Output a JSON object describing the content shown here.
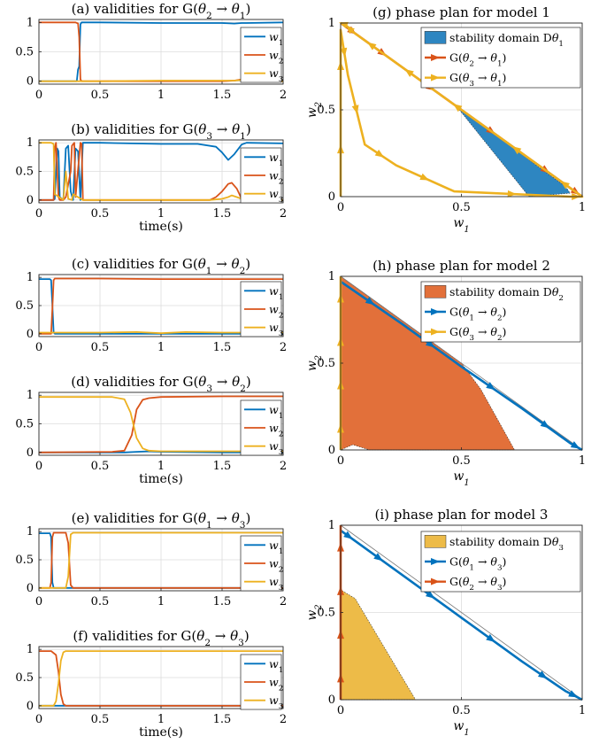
{
  "chart_data": [
    {
      "id": "a",
      "type": "line",
      "title": "(a) validities for G(θ2 → θ1)",
      "xlabel": "",
      "ylabel": "",
      "xlim": [
        0,
        2
      ],
      "ylim": [
        -0.05,
        1.05
      ],
      "xticks": [
        "0",
        "0.5",
        "1",
        "1.5",
        "2"
      ],
      "xtick_values": [
        0,
        0.5,
        1,
        1.5,
        2
      ],
      "yticks": [
        "0",
        "0.5",
        "1"
      ],
      "ytick_values": [
        0,
        0.5,
        1
      ],
      "grid": true,
      "legend": "right",
      "series": [
        {
          "name": "w1",
          "color": "#0072bd",
          "x": [
            0,
            0.31,
            0.32,
            0.33,
            0.34,
            0.35,
            0.5,
            1.0,
            1.5,
            1.6,
            1.66,
            1.7,
            2.0
          ],
          "y": [
            0,
            0,
            0.2,
            0.25,
            0.97,
            1,
            1,
            0.99,
            0.99,
            0.98,
            0.99,
            0.99,
            1
          ]
        },
        {
          "name": "w2",
          "color": "#d95319",
          "x": [
            0,
            0.3,
            0.32,
            0.33,
            0.34,
            0.35,
            0.5,
            1.0,
            1.5,
            1.6,
            1.66,
            1.7,
            2.0
          ],
          "y": [
            1,
            1,
            0.98,
            0.75,
            0.03,
            0,
            0,
            0,
            0,
            0.01,
            0.03,
            0,
            0
          ]
        },
        {
          "name": "w3",
          "color": "#edb120",
          "x": [
            0,
            0.5,
            1.0,
            1.6,
            1.66,
            1.7,
            2.0
          ],
          "y": [
            0,
            0,
            0.01,
            0.01,
            0.02,
            0,
            0
          ]
        }
      ]
    },
    {
      "id": "b",
      "type": "line",
      "title": "(b) validities for G(θ3 → θ1)",
      "xlabel": "time(s)",
      "ylabel": "",
      "xlim": [
        0,
        2
      ],
      "ylim": [
        -0.05,
        1.05
      ],
      "xticks": [
        "0",
        "0.5",
        "1",
        "1.5",
        "2"
      ],
      "xtick_values": [
        0,
        0.5,
        1,
        1.5,
        2
      ],
      "yticks": [
        "0",
        "0.5",
        "1"
      ],
      "ytick_values": [
        0,
        0.5,
        1
      ],
      "grid": true,
      "legend": "right",
      "series": [
        {
          "name": "w1",
          "color": "#0072bd",
          "x": [
            0,
            0.12,
            0.13,
            0.15,
            0.16,
            0.17,
            0.2,
            0.22,
            0.24,
            0.26,
            0.28,
            0.3,
            0.32,
            0.34,
            0.36,
            0.5,
            1.0,
            1.3,
            1.45,
            1.5,
            1.55,
            1.6,
            1.66,
            1.7,
            2.0
          ],
          "y": [
            0,
            0,
            0.02,
            0.9,
            0.85,
            0.05,
            0,
            0.9,
            0.95,
            0.15,
            0,
            0.9,
            0.85,
            0,
            1,
            1,
            0.98,
            0.98,
            0.93,
            0.83,
            0.7,
            0.8,
            0.97,
            1,
            0.99
          ]
        },
        {
          "name": "w2",
          "color": "#d95319",
          "x": [
            0,
            0.12,
            0.13,
            0.14,
            0.16,
            0.17,
            0.2,
            0.22,
            0.26,
            0.27,
            0.29,
            0.3,
            0.34,
            0.35,
            0.36,
            0.5,
            1.0,
            1.4,
            1.45,
            1.5,
            1.55,
            1.58,
            1.62,
            1.66,
            1.7,
            2.0
          ],
          "y": [
            0,
            0,
            0.9,
            1,
            0.05,
            0,
            0,
            0.05,
            0.5,
            0.95,
            1,
            0.05,
            1,
            0.98,
            0,
            0,
            0,
            0,
            0.05,
            0.15,
            0.28,
            0.3,
            0.2,
            0.02,
            0,
            0
          ]
        },
        {
          "name": "w3",
          "color": "#edb120",
          "x": [
            0,
            0.1,
            0.12,
            0.13,
            0.2,
            0.22,
            0.24,
            0.27,
            0.28,
            0.36,
            1.0,
            1.4,
            1.5,
            1.55,
            1.58,
            1.62,
            1.66,
            1.7,
            2.0
          ],
          "y": [
            1,
            1,
            0.98,
            0.1,
            0,
            0.5,
            0.02,
            0,
            0.1,
            0,
            0,
            0,
            0.02,
            0.05,
            0.08,
            0.05,
            0.02,
            0,
            0
          ]
        }
      ]
    },
    {
      "id": "c",
      "type": "line",
      "title": "(c) validities for G(θ1 → θ2)",
      "xlabel": "",
      "ylabel": "",
      "xlim": [
        0,
        2
      ],
      "ylim": [
        -0.05,
        1.05
      ],
      "xticks": [
        "0",
        "0.5",
        "1",
        "1.5",
        "2"
      ],
      "xtick_values": [
        0,
        0.5,
        1,
        1.5,
        2
      ],
      "yticks": [
        "0",
        "0.5",
        "1"
      ],
      "ytick_values": [
        0,
        0.5,
        1
      ],
      "grid": true,
      "legend": "right",
      "series": [
        {
          "name": "w1",
          "color": "#0072bd",
          "x": [
            0,
            0.09,
            0.1,
            0.11,
            0.12,
            0.13,
            0.5,
            1.0,
            1.5,
            2.0
          ],
          "y": [
            0.97,
            0.97,
            0.95,
            0.5,
            0.03,
            0,
            0,
            0,
            0,
            0
          ]
        },
        {
          "name": "w2",
          "color": "#d95319",
          "x": [
            0,
            0.1,
            0.11,
            0.12,
            0.13,
            0.5,
            1.0,
            1.5,
            2.0
          ],
          "y": [
            0,
            0,
            0.45,
            0.95,
            0.98,
            0.98,
            0.97,
            0.97,
            0.97
          ]
        },
        {
          "name": "w3",
          "color": "#edb120",
          "x": [
            0,
            0.5,
            0.8,
            1.0,
            1.2,
            1.5,
            2.0
          ],
          "y": [
            0.02,
            0.02,
            0.03,
            0.01,
            0.03,
            0.02,
            0.02
          ]
        }
      ]
    },
    {
      "id": "d",
      "type": "line",
      "title": "(d) validities for G(θ3 → θ2)",
      "xlabel": "time(s)",
      "ylabel": "",
      "xlim": [
        0,
        2
      ],
      "ylim": [
        -0.05,
        1.05
      ],
      "xticks": [
        "0",
        "0.5",
        "1",
        "1.5",
        "2"
      ],
      "xtick_values": [
        0,
        0.5,
        1,
        1.5,
        2
      ],
      "yticks": [
        "0",
        "0.5",
        "1"
      ],
      "ytick_values": [
        0,
        0.5,
        1
      ],
      "grid": true,
      "legend": "right",
      "series": [
        {
          "name": "w1",
          "color": "#0072bd",
          "x": [
            0,
            0.7,
            0.8,
            0.9,
            1.0,
            1.5,
            2.0
          ],
          "y": [
            0,
            0,
            0.01,
            0.02,
            0.01,
            0,
            0
          ]
        },
        {
          "name": "w2",
          "color": "#d95319",
          "x": [
            0,
            0.6,
            0.7,
            0.76,
            0.8,
            0.85,
            0.9,
            1.0,
            1.5,
            2.0
          ],
          "y": [
            0,
            0.01,
            0.03,
            0.3,
            0.75,
            0.92,
            0.95,
            0.97,
            0.98,
            0.98
          ]
        },
        {
          "name": "w3",
          "color": "#edb120",
          "x": [
            0,
            0.6,
            0.7,
            0.75,
            0.8,
            0.85,
            0.9,
            1.0,
            1.5,
            2.0
          ],
          "y": [
            0.97,
            0.97,
            0.93,
            0.7,
            0.25,
            0.07,
            0.03,
            0.02,
            0.02,
            0.02
          ]
        }
      ]
    },
    {
      "id": "e",
      "type": "line",
      "title": "(e) validities for G(θ1 → θ3)",
      "xlabel": "",
      "ylabel": "",
      "xlim": [
        0,
        2
      ],
      "ylim": [
        -0.05,
        1.05
      ],
      "xticks": [
        "0",
        "0.5",
        "1",
        "1.5",
        "2"
      ],
      "xtick_values": [
        0,
        0.5,
        1,
        1.5,
        2
      ],
      "yticks": [
        "0",
        "0.5",
        "1"
      ],
      "ytick_values": [
        0,
        0.5,
        1
      ],
      "grid": true,
      "legend": "right",
      "series": [
        {
          "name": "w1",
          "color": "#0072bd",
          "x": [
            0,
            0.09,
            0.1,
            0.11,
            0.12,
            0.5,
            1.0,
            2.0
          ],
          "y": [
            0.97,
            0.97,
            0.9,
            0.1,
            0,
            0,
            0,
            0
          ]
        },
        {
          "name": "w2",
          "color": "#d95319",
          "x": [
            0,
            0.09,
            0.1,
            0.11,
            0.12,
            0.22,
            0.24,
            0.26,
            0.28,
            0.5,
            2.0
          ],
          "y": [
            0,
            0,
            0.1,
            0.9,
            0.98,
            0.98,
            0.8,
            0.05,
            0,
            0,
            0
          ]
        },
        {
          "name": "w3",
          "color": "#edb120",
          "x": [
            0,
            0.22,
            0.24,
            0.26,
            0.28,
            0.3,
            0.5,
            1.0,
            1.5,
            2.0
          ],
          "y": [
            0,
            0,
            0.2,
            0.95,
            0.98,
            0.98,
            0.98,
            0.98,
            0.98,
            0.98
          ]
        }
      ]
    },
    {
      "id": "f",
      "type": "line",
      "title": "(f) validities for G(θ2 → θ3)",
      "xlabel": "time(s)",
      "ylabel": "",
      "xlim": [
        0,
        2
      ],
      "ylim": [
        -0.05,
        1.05
      ],
      "xticks": [
        "0",
        "0.5",
        "1",
        "1.5",
        "2"
      ],
      "xtick_values": [
        0,
        0.5,
        1,
        1.5,
        2
      ],
      "yticks": [
        "0",
        "0.5",
        "1"
      ],
      "ytick_values": [
        0,
        0.5,
        1
      ],
      "grid": true,
      "legend": "right",
      "series": [
        {
          "name": "w1",
          "color": "#0072bd",
          "x": [
            0,
            0.5,
            1.0,
            1.5,
            2.0
          ],
          "y": [
            0,
            0,
            0,
            0,
            0
          ]
        },
        {
          "name": "w2",
          "color": "#d95319",
          "x": [
            0,
            0.1,
            0.14,
            0.16,
            0.18,
            0.2,
            0.22,
            0.5,
            2.0
          ],
          "y": [
            0.97,
            0.97,
            0.9,
            0.6,
            0.2,
            0.03,
            0,
            0,
            0
          ]
        },
        {
          "name": "w3",
          "color": "#edb120",
          "x": [
            0,
            0.12,
            0.14,
            0.16,
            0.18,
            0.2,
            0.22,
            0.5,
            1.0,
            1.5,
            2.0
          ],
          "y": [
            0,
            0,
            0.08,
            0.4,
            0.8,
            0.95,
            0.97,
            0.97,
            0.97,
            0.97,
            0.97
          ]
        }
      ]
    },
    {
      "id": "g",
      "type": "line",
      "title": "(g) phase plan for model 1",
      "xlabel": "w1",
      "ylabel": "w2",
      "xlim": [
        0,
        1
      ],
      "ylim": [
        0,
        1
      ],
      "xticks": [
        "0",
        "0.5",
        "1"
      ],
      "xtick_values": [
        0,
        0.5,
        1
      ],
      "yticks": [
        "0",
        "0.5",
        "1"
      ],
      "ytick_values": [
        0,
        0.5,
        1
      ],
      "grid": true,
      "legend": "top-right",
      "region": {
        "name": "stability domain Dθ1",
        "color": "#2e86c1",
        "x": [
          0.48,
          0.56,
          0.68,
          0.82,
          0.93,
          0.95,
          0.78
        ],
        "y": [
          0.52,
          0.44,
          0.32,
          0.17,
          0.06,
          0.02,
          0.0
        ]
      },
      "series": [
        {
          "name": "G(θ2 → θ1)",
          "color": "#d95319",
          "x": [
            0,
            0.1,
            0.25,
            0.5,
            0.75,
            0.95,
            1.0
          ],
          "y": [
            1,
            0.9,
            0.75,
            0.5,
            0.25,
            0.05,
            0
          ]
        },
        {
          "name": "G(θ3 → θ1)",
          "color": "#edb120",
          "x": [
            0,
            0.0,
            0.0,
            0.03,
            0.1,
            0.23,
            0.47,
            0.95,
            1.0,
            0.85,
            0.6,
            0.36,
            0.2,
            0.05,
            0.02,
            0.0
          ],
          "y": [
            0.0,
            0.55,
            0.96,
            0.7,
            0.3,
            0.18,
            0.03,
            0.0,
            0.0,
            0.15,
            0.4,
            0.64,
            0.8,
            0.95,
            0.99,
            1.0
          ]
        }
      ]
    },
    {
      "id": "h",
      "type": "line",
      "title": "(h) phase plan for model 2",
      "xlabel": "w1",
      "ylabel": "w2",
      "xlim": [
        0,
        1
      ],
      "ylim": [
        0,
        1
      ],
      "xticks": [
        "0",
        "0.5",
        "1"
      ],
      "xtick_values": [
        0,
        0.5,
        1
      ],
      "yticks": [
        "0",
        "0.5",
        "1"
      ],
      "ytick_values": [
        0,
        0.5,
        1
      ],
      "grid": true,
      "legend": "top-right",
      "region": {
        "name": "stability domain Dθ2",
        "color": "#e2703a",
        "x": [
          0.0,
          0.0,
          0.5,
          0.58,
          0.72,
          0.12,
          0.05,
          0.0
        ],
        "y": [
          0.0,
          1.0,
          0.5,
          0.35,
          0.0,
          0.0,
          0.03,
          0.0
        ]
      },
      "series": [
        {
          "name": "G(θ1 → θ2)",
          "color": "#0072bd",
          "x": [
            0.0,
            0.25,
            0.5,
            0.75,
            0.95,
            1.0
          ],
          "y": [
            0.97,
            0.73,
            0.48,
            0.24,
            0.04,
            0.0
          ]
        },
        {
          "name": "G(θ3 → θ2)",
          "color": "#edb120",
          "x": [
            0.0,
            0.0,
            0.0,
            0.0,
            0.0
          ],
          "y": [
            0.0,
            0.25,
            0.5,
            0.75,
            1.0
          ]
        }
      ]
    },
    {
      "id": "i",
      "type": "line",
      "title": "(i) phase plan for model 3",
      "xlabel": "w1",
      "ylabel": "w2",
      "xlim": [
        0,
        1
      ],
      "ylim": [
        0,
        1
      ],
      "xticks": [
        "0",
        "0.5",
        "1"
      ],
      "xtick_values": [
        0,
        0.5,
        1
      ],
      "yticks": [
        "0",
        "0.5",
        "1"
      ],
      "ytick_values": [
        0,
        0.5,
        1
      ],
      "grid": true,
      "legend": "top-right",
      "region": {
        "name": "stability domain Dθ3",
        "color": "#edbb48",
        "x": [
          0.0,
          0.0,
          0.06,
          0.31,
          0.0
        ],
        "y": [
          0.0,
          0.63,
          0.58,
          0.0,
          0.0
        ]
      },
      "series": [
        {
          "name": "G(θ1 → θ3)",
          "color": "#0072bd",
          "x": [
            0.0,
            0.07,
            0.25,
            0.5,
            0.75,
            0.93,
            1.0
          ],
          "y": [
            0.97,
            0.9,
            0.72,
            0.47,
            0.22,
            0.05,
            0.0
          ]
        },
        {
          "name": "G(θ2 → θ3)",
          "color": "#d95319",
          "x": [
            0.0,
            0.0,
            0.0,
            0.0,
            0.0
          ],
          "y": [
            0.0,
            0.25,
            0.5,
            0.75,
            1.0
          ]
        }
      ]
    }
  ]
}
